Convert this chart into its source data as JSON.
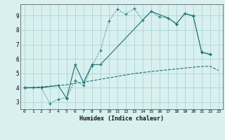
{
  "xlabel": "Humidex (Indice chaleur)",
  "bg_color": "#d8f0f0",
  "grid_color": "#a8cece",
  "line_color": "#1a7070",
  "xlim": [
    -0.5,
    23.5
  ],
  "ylim": [
    2.5,
    9.8
  ],
  "xticks": [
    0,
    1,
    2,
    3,
    4,
    5,
    6,
    7,
    8,
    9,
    10,
    11,
    12,
    13,
    14,
    15,
    16,
    17,
    18,
    19,
    20,
    21,
    22,
    23
  ],
  "yticks": [
    3,
    4,
    5,
    6,
    7,
    8,
    9
  ],
  "line1_x": [
    0,
    1,
    2,
    3,
    4,
    5,
    6,
    7,
    8,
    9,
    10,
    11,
    12,
    13,
    14,
    15,
    16,
    17,
    18,
    19,
    20,
    21,
    22
  ],
  "line1_y": [
    4.0,
    4.0,
    4.0,
    2.9,
    3.2,
    3.3,
    4.5,
    4.15,
    5.5,
    6.6,
    8.65,
    9.45,
    9.1,
    9.5,
    8.7,
    9.3,
    8.9,
    8.85,
    8.4,
    9.15,
    8.95,
    6.5,
    6.35
  ],
  "line2_x": [
    0,
    2,
    4,
    5,
    6,
    7,
    8,
    9,
    15,
    17,
    18,
    19,
    20,
    21,
    22
  ],
  "line2_y": [
    4.0,
    4.0,
    4.15,
    3.25,
    5.6,
    4.35,
    5.6,
    5.6,
    9.3,
    8.85,
    8.45,
    9.15,
    9.0,
    6.45,
    6.3
  ],
  "line3_x": [
    0,
    1,
    2,
    3,
    4,
    5,
    6,
    7,
    8,
    9,
    10,
    11,
    12,
    13,
    14,
    15,
    16,
    17,
    18,
    19,
    20,
    21,
    22,
    23
  ],
  "line3_y": [
    3.95,
    4.0,
    4.05,
    4.1,
    4.15,
    4.2,
    4.3,
    4.38,
    4.48,
    4.58,
    4.68,
    4.78,
    4.88,
    4.98,
    5.05,
    5.12,
    5.18,
    5.24,
    5.3,
    5.36,
    5.42,
    5.47,
    5.48,
    5.2
  ]
}
